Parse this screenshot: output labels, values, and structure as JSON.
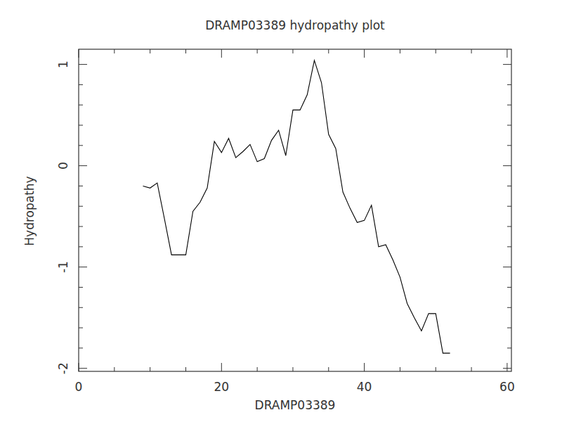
{
  "chart_data": {
    "type": "line",
    "title": "DRAMP03389 hydropathy plot",
    "x_label": "DRAMP03389",
    "y_label": "Hydropathy",
    "x": [
      9,
      10,
      11,
      12,
      13,
      14,
      15,
      16,
      17,
      18,
      19,
      20,
      21,
      22,
      23,
      24,
      25,
      26,
      27,
      28,
      29,
      30,
      31,
      32,
      33,
      34,
      35,
      36,
      37,
      38,
      39,
      40,
      41,
      42,
      43,
      44,
      45,
      46,
      47,
      48,
      49,
      50,
      51,
      52
    ],
    "series": [
      {
        "name": "Hydropathy",
        "color": "#000000",
        "values": [
          -0.2,
          -0.22,
          -0.17,
          -0.52,
          -0.88,
          -0.88,
          -0.88,
          -0.45,
          -0.36,
          -0.22,
          0.24,
          0.13,
          0.27,
          0.08,
          0.14,
          0.21,
          0.04,
          0.07,
          0.25,
          0.35,
          0.1,
          0.55,
          0.55,
          0.7,
          1.04,
          0.82,
          0.31,
          0.17,
          -0.26,
          -0.42,
          -0.56,
          -0.54,
          -0.39,
          -0.8,
          -0.78,
          -0.93,
          -1.1,
          -1.36,
          -1.5,
          -1.63,
          -1.46,
          -1.46,
          -1.85,
          -1.85
        ]
      }
    ],
    "xlim": [
      0,
      60.6
    ],
    "ylim": [
      -2.03,
      1.15
    ],
    "xticks": [
      0,
      20,
      40,
      60
    ],
    "yticks": [
      -2,
      -1,
      0,
      1
    ],
    "grid": false
  }
}
